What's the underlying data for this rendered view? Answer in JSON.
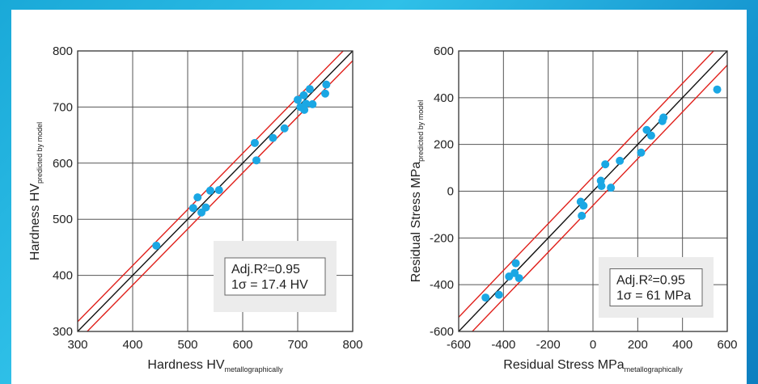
{
  "chart_data": [
    {
      "type": "scatter",
      "xlabel": "Hardness HV",
      "xlabel_sub": "metallographically",
      "ylabel": "Hardness HV",
      "ylabel_sub": "predicted by model",
      "xlim": [
        300,
        800
      ],
      "ylim": [
        300,
        800
      ],
      "xticks": [
        "300",
        "400",
        "500",
        "600",
        "700",
        "800"
      ],
      "yticks": [
        "300",
        "400",
        "500",
        "600",
        "700",
        "800"
      ],
      "grid": true,
      "reference_lines": {
        "identity": true,
        "sigma": 17.4
      },
      "annotation_lines": [
        "Adj.R²=0.95",
        "1σ = 17.4 HV"
      ],
      "annotation_position": "bottom-right",
      "points": [
        {
          "x": 443,
          "y": 453
        },
        {
          "x": 510,
          "y": 520
        },
        {
          "x": 518,
          "y": 539
        },
        {
          "x": 525,
          "y": 512
        },
        {
          "x": 533,
          "y": 521
        },
        {
          "x": 541,
          "y": 551
        },
        {
          "x": 557,
          "y": 552
        },
        {
          "x": 622,
          "y": 636
        },
        {
          "x": 625,
          "y": 605
        },
        {
          "x": 655,
          "y": 645
        },
        {
          "x": 676,
          "y": 662
        },
        {
          "x": 700,
          "y": 713
        },
        {
          "x": 705,
          "y": 700
        },
        {
          "x": 711,
          "y": 721
        },
        {
          "x": 715,
          "y": 706
        },
        {
          "x": 722,
          "y": 732
        },
        {
          "x": 727,
          "y": 705
        },
        {
          "x": 712,
          "y": 695
        },
        {
          "x": 750,
          "y": 724
        },
        {
          "x": 752,
          "y": 740
        }
      ]
    },
    {
      "type": "scatter",
      "xlabel": "Residual Stress MPa",
      "xlabel_sub": "metallographically",
      "ylabel": "Residual Stress MPa",
      "ylabel_sub": "predicted by model",
      "xlim": [
        -600,
        600
      ],
      "ylim": [
        -600,
        600
      ],
      "xticks": [
        "-600",
        "-400",
        "-200",
        "0",
        "200",
        "400",
        "600"
      ],
      "yticks": [
        "-600",
        "-400",
        "-200",
        "0",
        "200",
        "400",
        "600"
      ],
      "grid": true,
      "reference_lines": {
        "identity": true,
        "sigma": 61
      },
      "annotation_lines": [
        "Adj.R²=0.95",
        "1σ = 61 MPa"
      ],
      "annotation_position": "bottom-right",
      "points": [
        {
          "x": -480,
          "y": -455
        },
        {
          "x": -420,
          "y": -443
        },
        {
          "x": -375,
          "y": -365
        },
        {
          "x": -350,
          "y": -350
        },
        {
          "x": -345,
          "y": -308
        },
        {
          "x": -330,
          "y": -372
        },
        {
          "x": -55,
          "y": -45
        },
        {
          "x": -50,
          "y": -105
        },
        {
          "x": -42,
          "y": -62
        },
        {
          "x": 35,
          "y": 45
        },
        {
          "x": 38,
          "y": 22
        },
        {
          "x": 55,
          "y": 115
        },
        {
          "x": 80,
          "y": 15
        },
        {
          "x": 120,
          "y": 130
        },
        {
          "x": 215,
          "y": 165
        },
        {
          "x": 240,
          "y": 262
        },
        {
          "x": 260,
          "y": 238
        },
        {
          "x": 310,
          "y": 300
        },
        {
          "x": 315,
          "y": 315
        },
        {
          "x": 555,
          "y": 435
        }
      ]
    }
  ],
  "colors": {
    "point": "#1aa7e4",
    "identity_line": "#111111",
    "sigma_line": "#e0201b",
    "grid": "#555555",
    "annotation_bg": "#ececec"
  }
}
